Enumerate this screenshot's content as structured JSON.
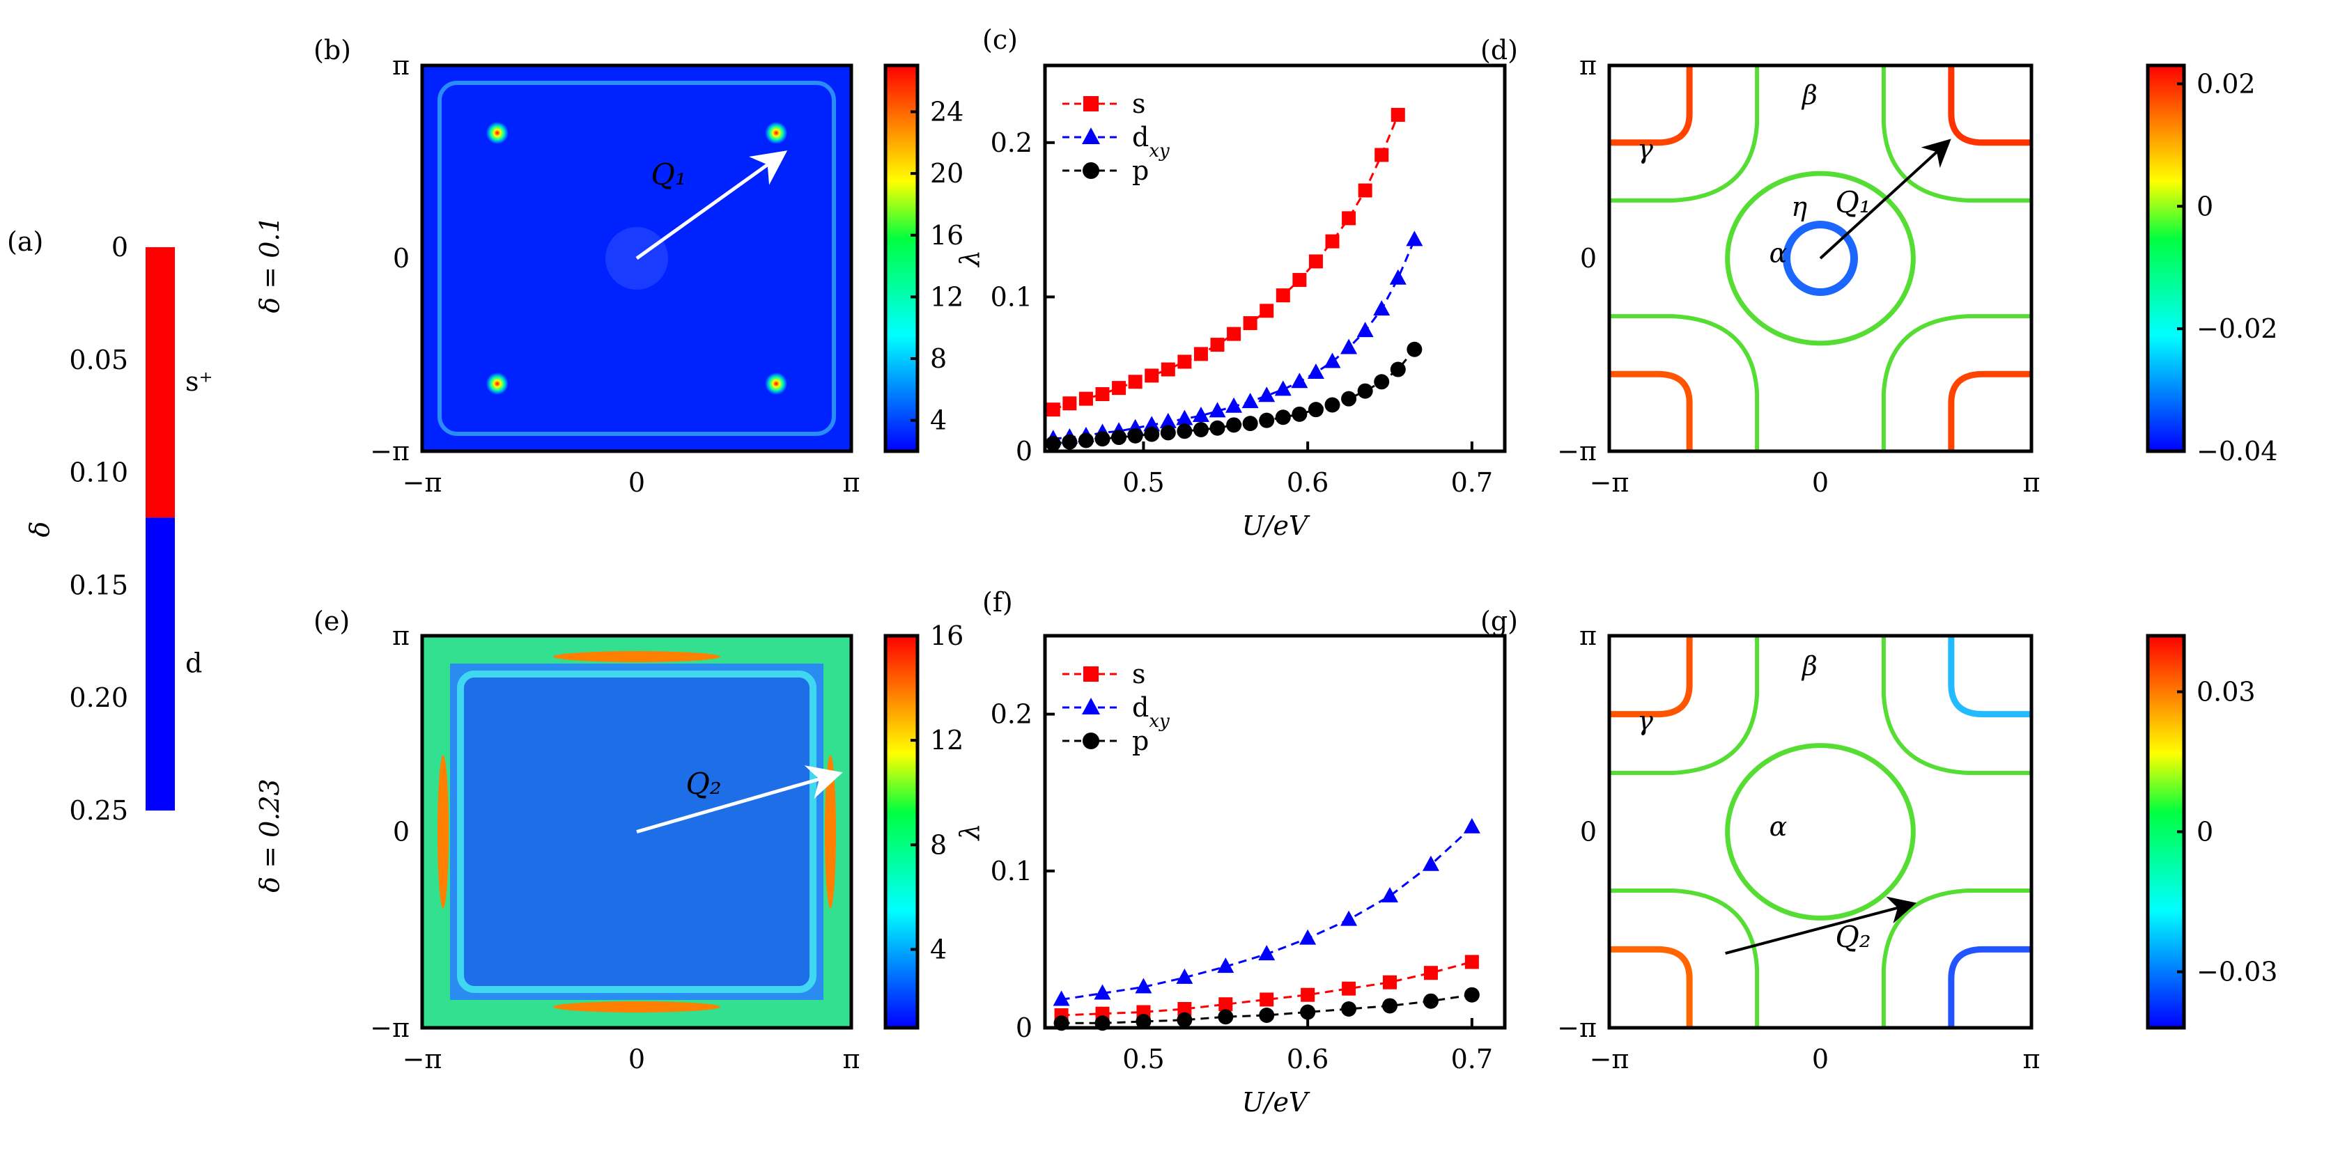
{
  "panel_labels": {
    "a": "(a)",
    "b": "(b)",
    "c": "(c)",
    "d": "(d)",
    "e": "(e)",
    "f": "(f)",
    "g": "(g)"
  },
  "row_labels": {
    "top": "δ = 0.1",
    "bottom": "δ = 0.23"
  },
  "colors": {
    "s": "#ff0000",
    "dxy": "#0000ff",
    "p": "#000000",
    "green_fs": "#55dd33",
    "eta": "#1a66ff"
  },
  "chart_data": [
    {
      "id": "a",
      "type": "bar",
      "ylabel": "δ",
      "ylim": [
        0,
        0.25
      ],
      "ticks": [
        "0",
        "0.05",
        "0.10",
        "0.15",
        "0.20",
        "0.25"
      ],
      "segments": [
        {
          "name": "s⁺",
          "from": 0,
          "to": 0.12,
          "color": "#ff0000"
        },
        {
          "name": "d_xy",
          "from": 0.12,
          "to": 0.25,
          "color": "#0000ff"
        }
      ]
    },
    {
      "id": "b",
      "type": "heatmap",
      "xticks": [
        "−π",
        "0",
        "π"
      ],
      "yticks": [
        "−π",
        "0",
        "π"
      ],
      "colorbar": {
        "range": [
          2,
          27
        ],
        "ticks": [
          "4",
          "8",
          "12",
          "16",
          "20",
          "24"
        ]
      },
      "annotation": "Q₁"
    },
    {
      "id": "c",
      "type": "line",
      "xlabel": "U/eV",
      "ylabel": "λ",
      "xlim": [
        0.44,
        0.72
      ],
      "ylim": [
        0,
        0.25
      ],
      "xticks": [
        "0.5",
        "0.6",
        "0.7"
      ],
      "yticks": [
        "0",
        "0.1",
        "0.2"
      ],
      "legend": "top-left",
      "series": [
        {
          "name": "s",
          "marker": "square",
          "x": [
            0.445,
            0.455,
            0.465,
            0.475,
            0.485,
            0.495,
            0.505,
            0.515,
            0.525,
            0.535,
            0.545,
            0.555,
            0.565,
            0.575,
            0.585,
            0.595,
            0.605,
            0.615,
            0.625,
            0.635,
            0.645,
            0.655
          ],
          "y": [
            0.027,
            0.031,
            0.034,
            0.037,
            0.041,
            0.045,
            0.049,
            0.053,
            0.058,
            0.063,
            0.069,
            0.076,
            0.083,
            0.091,
            0.101,
            0.111,
            0.123,
            0.136,
            0.151,
            0.169,
            0.192,
            0.218
          ]
        },
        {
          "name": "d_xy",
          "marker": "triangle",
          "x": [
            0.445,
            0.455,
            0.465,
            0.475,
            0.485,
            0.495,
            0.505,
            0.515,
            0.525,
            0.535,
            0.545,
            0.555,
            0.565,
            0.575,
            0.585,
            0.595,
            0.605,
            0.615,
            0.625,
            0.635,
            0.645,
            0.655,
            0.665
          ],
          "y": [
            0.008,
            0.009,
            0.01,
            0.012,
            0.013,
            0.015,
            0.017,
            0.019,
            0.021,
            0.023,
            0.026,
            0.029,
            0.032,
            0.036,
            0.04,
            0.045,
            0.051,
            0.058,
            0.067,
            0.078,
            0.092,
            0.112,
            0.137
          ]
        },
        {
          "name": "p",
          "marker": "circle",
          "x": [
            0.445,
            0.455,
            0.465,
            0.475,
            0.485,
            0.495,
            0.505,
            0.515,
            0.525,
            0.535,
            0.545,
            0.555,
            0.565,
            0.575,
            0.585,
            0.595,
            0.605,
            0.615,
            0.625,
            0.635,
            0.645,
            0.655,
            0.665
          ],
          "y": [
            0.005,
            0.006,
            0.007,
            0.008,
            0.009,
            0.01,
            0.011,
            0.012,
            0.013,
            0.014,
            0.015,
            0.017,
            0.018,
            0.02,
            0.022,
            0.024,
            0.027,
            0.03,
            0.034,
            0.039,
            0.045,
            0.053,
            0.066
          ]
        }
      ]
    },
    {
      "id": "d",
      "type": "fermi-surface",
      "xticks": [
        "−π",
        "0",
        "π"
      ],
      "yticks": [
        "−π",
        "0",
        "π"
      ],
      "colorbar": {
        "range": [
          -0.04,
          0.023
        ],
        "ticks": [
          "0.02",
          "0",
          "−0.02",
          "−0.04"
        ]
      },
      "pocket_labels": [
        "α",
        "β",
        "γ",
        "η"
      ],
      "annotation": "Q₁"
    },
    {
      "id": "e",
      "type": "heatmap",
      "xticks": [
        "−π",
        "0",
        "π"
      ],
      "yticks": [
        "−π",
        "0",
        "π"
      ],
      "colorbar": {
        "range": [
          1,
          16
        ],
        "ticks": [
          "4",
          "8",
          "12",
          "16"
        ]
      },
      "annotation": "Q₂"
    },
    {
      "id": "f",
      "type": "line",
      "xlabel": "U/eV",
      "ylabel": "λ",
      "xlim": [
        0.44,
        0.72
      ],
      "ylim": [
        0,
        0.25
      ],
      "xticks": [
        "0.5",
        "0.6",
        "0.7"
      ],
      "yticks": [
        "0",
        "0.1",
        "0.2"
      ],
      "legend": "top-left",
      "series": [
        {
          "name": "s",
          "marker": "square",
          "x": [
            0.45,
            0.475,
            0.5,
            0.525,
            0.55,
            0.575,
            0.6,
            0.625,
            0.65,
            0.675,
            0.7
          ],
          "y": [
            0.008,
            0.009,
            0.01,
            0.012,
            0.015,
            0.018,
            0.021,
            0.025,
            0.029,
            0.035,
            0.042
          ]
        },
        {
          "name": "d_xy",
          "marker": "triangle",
          "x": [
            0.45,
            0.475,
            0.5,
            0.525,
            0.55,
            0.575,
            0.6,
            0.625,
            0.65,
            0.675,
            0.7
          ],
          "y": [
            0.018,
            0.022,
            0.026,
            0.032,
            0.039,
            0.047,
            0.057,
            0.069,
            0.084,
            0.104,
            0.128
          ]
        },
        {
          "name": "p",
          "marker": "circle",
          "x": [
            0.45,
            0.475,
            0.5,
            0.525,
            0.55,
            0.575,
            0.6,
            0.625,
            0.65,
            0.675,
            0.7
          ],
          "y": [
            0.003,
            0.003,
            0.004,
            0.005,
            0.007,
            0.008,
            0.01,
            0.012,
            0.014,
            0.017,
            0.021
          ]
        }
      ]
    },
    {
      "id": "g",
      "type": "fermi-surface",
      "xticks": [
        "−π",
        "0",
        "π"
      ],
      "yticks": [
        "−π",
        "0",
        "π"
      ],
      "colorbar": {
        "range": [
          -0.042,
          0.042
        ],
        "ticks": [
          "0.03",
          "0",
          "−0.03"
        ]
      },
      "pocket_labels": [
        "α",
        "β",
        "γ"
      ],
      "annotation": "Q₂"
    }
  ]
}
